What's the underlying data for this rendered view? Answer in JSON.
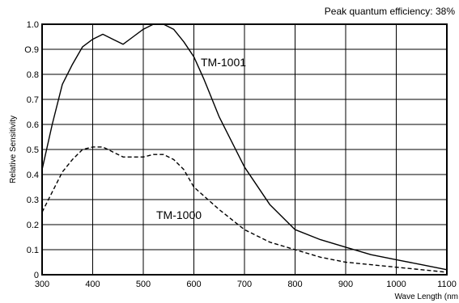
{
  "chart_data": {
    "type": "line",
    "title": "",
    "annotation": "Peak quantum efficiency: 38%",
    "xlabel": "Wave Length (nm",
    "ylabel": "Relative Sensitivity",
    "xlim": [
      300,
      1100
    ],
    "ylim": [
      0,
      1.0
    ],
    "grid": true,
    "x_ticks": [
      "300",
      "400",
      "500",
      "600",
      "700",
      "800",
      "900",
      "1000",
      "1100"
    ],
    "x_tick_values": [
      300,
      400,
      500,
      600,
      700,
      800,
      900,
      1000,
      1100
    ],
    "y_ticks": [
      "0",
      "0.1",
      "0.2",
      "0.3",
      "0.4",
      "0.5",
      "0.6",
      "0.7",
      "0.8",
      "O.9",
      "1.0"
    ],
    "y_tick_values": [
      0,
      0.1,
      0.2,
      0.3,
      0.4,
      0.5,
      0.6,
      0.7,
      0.8,
      0.9,
      1.0
    ],
    "series": [
      {
        "name": "TM-1001",
        "style": "solid",
        "color": "#000000",
        "x": [
          300,
          320,
          340,
          360,
          380,
          400,
          420,
          440,
          460,
          480,
          500,
          520,
          540,
          560,
          580,
          600,
          620,
          650,
          700,
          750,
          800,
          850,
          900,
          950,
          1000,
          1050,
          1100
        ],
        "y": [
          0.42,
          0.6,
          0.76,
          0.84,
          0.91,
          0.94,
          0.96,
          0.94,
          0.92,
          0.95,
          0.98,
          1.0,
          1.0,
          0.98,
          0.93,
          0.87,
          0.78,
          0.63,
          0.43,
          0.28,
          0.18,
          0.14,
          0.11,
          0.08,
          0.06,
          0.04,
          0.02
        ]
      },
      {
        "name": "TM-1000",
        "style": "dashed",
        "color": "#000000",
        "x": [
          300,
          320,
          340,
          360,
          380,
          400,
          420,
          440,
          460,
          480,
          500,
          520,
          540,
          560,
          580,
          600,
          650,
          700,
          750,
          800,
          850,
          900,
          950,
          1000,
          1050,
          1100
        ],
        "y": [
          0.25,
          0.33,
          0.41,
          0.46,
          0.5,
          0.51,
          0.51,
          0.49,
          0.47,
          0.47,
          0.47,
          0.48,
          0.48,
          0.46,
          0.42,
          0.35,
          0.26,
          0.18,
          0.13,
          0.1,
          0.07,
          0.05,
          0.04,
          0.03,
          0.02,
          0.01
        ]
      }
    ]
  }
}
